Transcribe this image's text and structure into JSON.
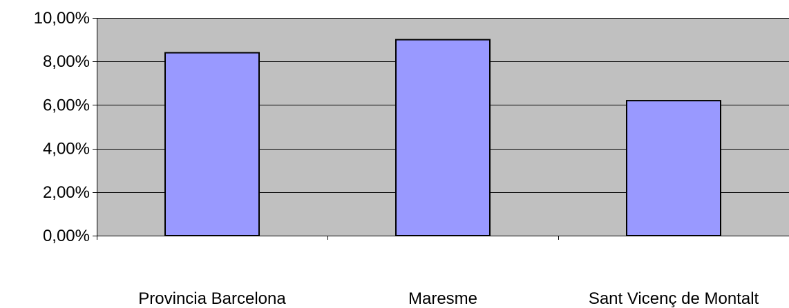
{
  "colors": {
    "plot_background": "#c0c0c0",
    "bar_fill": "#9999ff",
    "bar_stroke": "#000000",
    "gridline": "#000000"
  },
  "chart_data": {
    "type": "bar",
    "categories": [
      "Provincia Barcelona",
      "Maresme",
      "Sant Vicenç de Montalt"
    ],
    "values": [
      8.4,
      9.0,
      6.2
    ],
    "y_ticks": [
      0,
      2,
      4,
      6,
      8,
      10
    ],
    "y_tick_labels": [
      "0,00%",
      "2,00%",
      "4,00%",
      "6,00%",
      "8,00%",
      "10,00%"
    ],
    "ylim": [
      0,
      10
    ],
    "title": "",
    "xlabel": "",
    "ylabel": "",
    "grid": "horizontal",
    "legend": "none"
  }
}
